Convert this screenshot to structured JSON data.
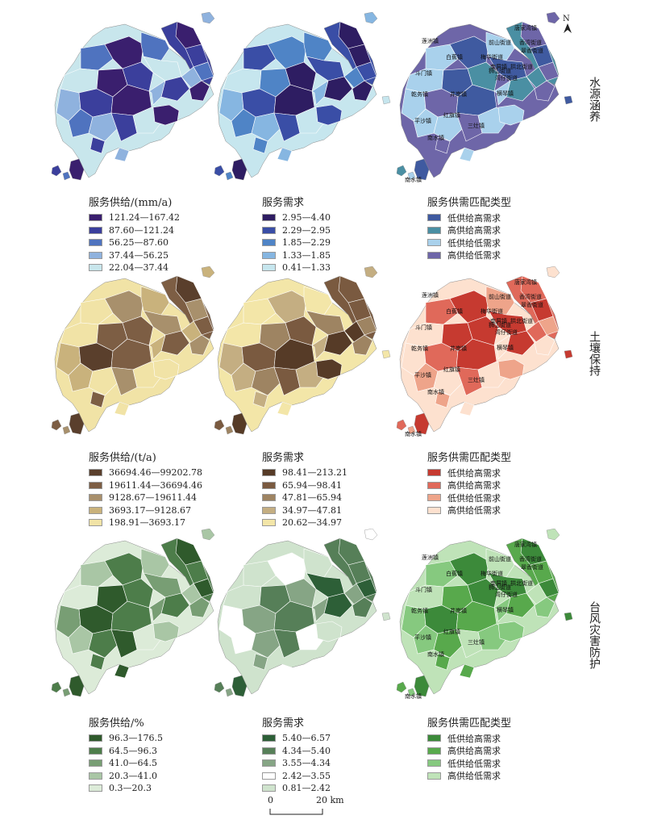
{
  "themes": [
    {
      "name": "水源涵养",
      "supply_title": "服务供给/(mm/a)",
      "supply_classes": [
        "121.24—167.42",
        "87.60—121.24",
        "56.25—87.60",
        "37.44—56.25",
        "22.04—37.44"
      ],
      "supply_colors": [
        "#3a1f6e",
        "#3b3f9c",
        "#4f73bf",
        "#8fb2de",
        "#c8e6ec"
      ],
      "demand_title": "服务需求",
      "demand_classes": [
        "2.95—4.40",
        "2.29—2.95",
        "1.85—2.29",
        "1.33—1.85",
        "0.41—1.33"
      ],
      "demand_colors": [
        "#2e1d62",
        "#3a4ea6",
        "#4f84c6",
        "#86b6e1",
        "#c6e6ee"
      ],
      "match_title": "服务供需匹配类型",
      "match_classes": [
        "低供给高需求",
        "高供给高需求",
        "低供给低需求",
        "高供给低需求"
      ],
      "match_colors": [
        "#3f5aa0",
        "#4a8fa3",
        "#a9d1ec",
        "#6e66a8"
      ]
    },
    {
      "name": "土壤保持",
      "supply_title": "服务供给/(t/a)",
      "supply_classes": [
        "36694.46—99202.78",
        "19611.44—36694.46",
        "9128.67—19611.44",
        "3693.17—9128.67",
        "198.91—3693.17"
      ],
      "supply_colors": [
        "#5a3f2c",
        "#7d5e44",
        "#a8906c",
        "#c9b27c",
        "#f1e3a6"
      ],
      "demand_title": "服务需求",
      "demand_classes": [
        "98.41—213.21",
        "65.94—98.41",
        "47.81—65.94",
        "34.97—47.81",
        "20.62—34.97"
      ],
      "demand_colors": [
        "#563b27",
        "#7a5a40",
        "#9e8462",
        "#c4ae82",
        "#f3e6a8"
      ],
      "match_title": "服务供需匹配类型",
      "match_classes": [
        "低供给高需求",
        "高供给高需求",
        "低供给低需求",
        "高供给低需求"
      ],
      "match_colors": [
        "#c63a30",
        "#e0695a",
        "#eea48a",
        "#fde1cf"
      ]
    },
    {
      "name": "台风灾害防护",
      "supply_title": "服务供给/%",
      "supply_classes": [
        "96.3—176.5",
        "64.5—96.3",
        "41.0—64.5",
        "20.3—41.0",
        "0.3—20.3"
      ],
      "supply_colors": [
        "#2f5a2c",
        "#4d7d4a",
        "#789e74",
        "#a9c6a5",
        "#dcebd8"
      ],
      "demand_title": "服务需求",
      "demand_classes": [
        "5.40—6.57",
        "4.34—5.40",
        "3.55—4.34",
        "2.42—3.55",
        "0.81—2.42"
      ],
      "demand_colors": [
        "#2d5f37",
        "#567f58",
        "#86a585",
        "#ffffff",
        "#cfe3cd"
      ],
      "match_title": "服务供需匹配类型",
      "match_classes": [
        "低供给高需求",
        "高供给高需求",
        "低供给低需求",
        "高供给低需求"
      ],
      "match_colors": [
        "#3c8a3a",
        "#58a94c",
        "#86c97f",
        "#bfe3b8"
      ]
    }
  ],
  "town_labels": [
    "唐家湾镇",
    "香湾街道",
    "前山街道",
    "翠香街道",
    "梅华街道",
    "拱北街道",
    "狮山街道",
    "湾仔街道",
    "莲洲镇",
    "白蕉镇",
    "斗门镇",
    "井岸镇",
    "南屏镇",
    "横琴镇",
    "乾务镇",
    "红旗镇",
    "平沙镇",
    "三灶镇",
    "南水镇",
    "南水镇"
  ],
  "north_label": "N",
  "scale": {
    "zero": "0",
    "end": "20 km"
  }
}
